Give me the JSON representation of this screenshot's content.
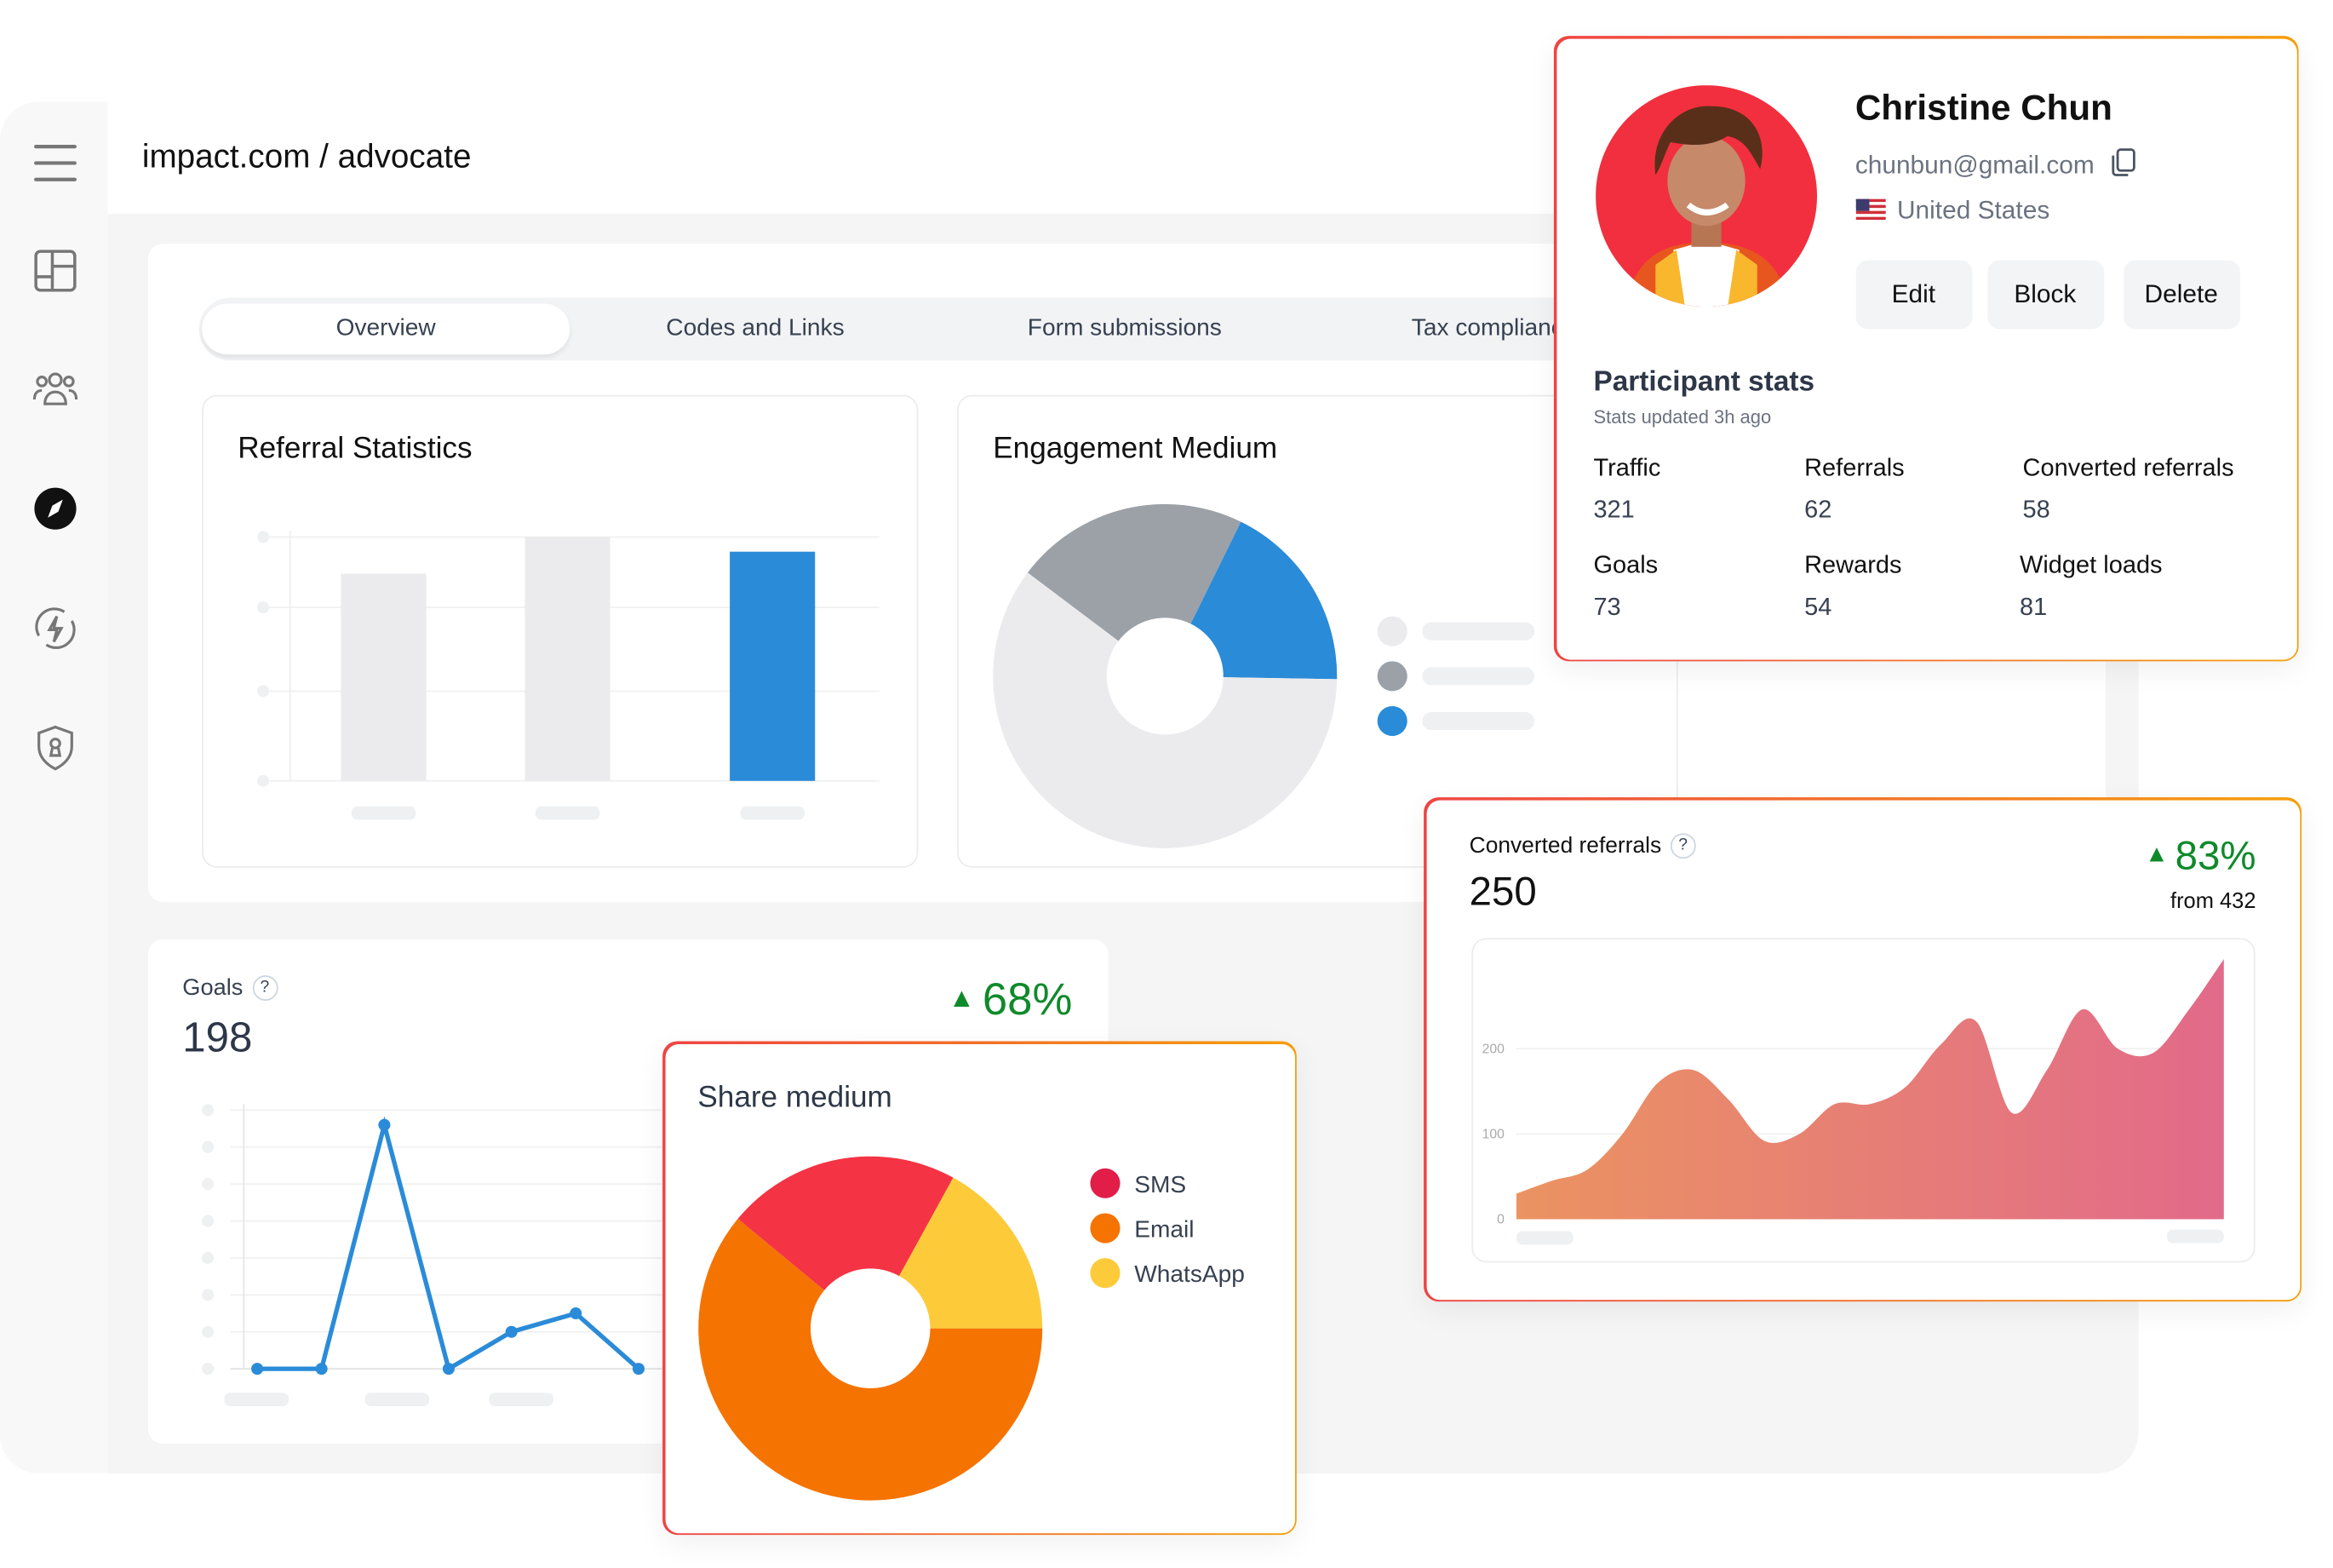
{
  "header": {
    "breadcrumb": "impact.com / advocate"
  },
  "sidebar": {
    "items": [
      {
        "icon": "menu-icon"
      },
      {
        "icon": "dashboard-icon"
      },
      {
        "icon": "users-icon"
      },
      {
        "icon": "compass-icon",
        "active": true
      },
      {
        "icon": "automation-icon"
      },
      {
        "icon": "shield-icon"
      }
    ]
  },
  "tabs": [
    {
      "label": "Overview",
      "active": true
    },
    {
      "label": "Codes and Links"
    },
    {
      "label": "Form submissions"
    },
    {
      "label": "Tax compliance"
    }
  ],
  "referral_statistics": {
    "title": "Referral Statistics"
  },
  "engagement_medium": {
    "title": "Engagement Medium"
  },
  "goals": {
    "label": "Goals",
    "help": "?",
    "value": "198",
    "change": "68%"
  },
  "share_medium": {
    "title": "Share medium",
    "legend": [
      "SMS",
      "Email",
      "WhatsApp"
    ]
  },
  "converted": {
    "label": "Converted referrals",
    "help": "?",
    "value": "250",
    "change": "83%",
    "from": "from 432"
  },
  "profile": {
    "name": "Christine Chun",
    "email": "chunbun@gmail.com",
    "country": "United States",
    "buttons": {
      "edit": "Edit",
      "block": "Block",
      "delete": "Delete"
    },
    "stats_title": "Participant stats",
    "stats_updated": "Stats updated 3h ago",
    "stats": [
      {
        "label": "Traffic",
        "value": "321"
      },
      {
        "label": "Referrals",
        "value": "62"
      },
      {
        "label": "Converted referrals",
        "value": "58"
      },
      {
        "label": "Goals",
        "value": "73"
      },
      {
        "label": "Rewards",
        "value": "54"
      },
      {
        "label": "Widget loads",
        "value": "81"
      }
    ]
  },
  "colors": {
    "accent_blue": "#2a8bd8",
    "positive": "#0f8a2a",
    "sms": "#f43344",
    "email": "#f57300",
    "whatsapp": "#fdcb3a",
    "border_start": "#ef4444",
    "border_end": "#f59e0b"
  },
  "chart_data": [
    {
      "type": "bar",
      "title": "Referral Statistics",
      "values": [
        0.85,
        1.0,
        0.94
      ],
      "colors": [
        "#ebebed",
        "#ebebed",
        "#2a8bd8"
      ],
      "ylim": [
        0,
        1
      ],
      "grid": true
    },
    {
      "type": "pie",
      "title": "Engagement Medium",
      "donut": true,
      "values": [
        22,
        18,
        60
      ],
      "colors": [
        "#9ca1a8",
        "#2a8bd8",
        "#ebebed"
      ]
    },
    {
      "type": "line",
      "title": "Goals",
      "values": [
        0,
        0,
        6.6,
        0,
        1,
        1.5,
        0
      ],
      "ylim": [
        0,
        7
      ],
      "grid": true,
      "color": "#2a8bd8"
    },
    {
      "type": "pie",
      "title": "Share medium",
      "donut": true,
      "labels": [
        "SMS",
        "Email",
        "WhatsApp"
      ],
      "values": [
        22,
        61,
        17
      ],
      "legend": "right"
    },
    {
      "type": "area",
      "title": "Converted referrals",
      "yticks": [
        "0",
        "100",
        "200"
      ],
      "ylim": [
        0,
        320
      ],
      "values": [
        30,
        45,
        58,
        100,
        160,
        175,
        140,
        92,
        100,
        135,
        135,
        155,
        205,
        232,
        125,
        175,
        246,
        200,
        195,
        245,
        305
      ],
      "grid": true
    }
  ]
}
